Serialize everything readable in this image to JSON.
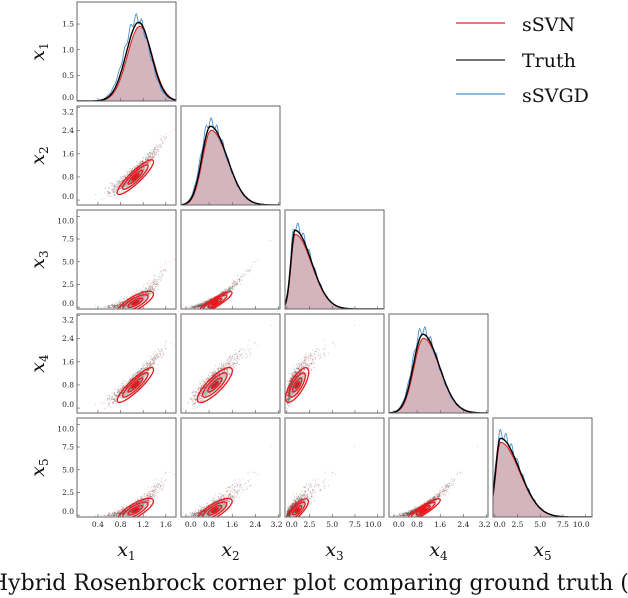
{
  "chart_data": {
    "type": "corner",
    "variables": [
      {
        "name": "x",
        "sub": "1",
        "range": [
          0.03,
          1.78
        ],
        "ticks": [
          "0.4",
          "0.8",
          "1.2",
          "1.6"
        ],
        "tick_values": [
          0.4,
          0.8,
          1.2,
          1.6
        ],
        "mode": 1.12,
        "sd": 0.22,
        "skew": 0.0,
        "density_max": 1.93,
        "density_ticks": [
          "0.0",
          "0.5",
          "1.0",
          "1.5"
        ],
        "density_tick_values": [
          0,
          0.5,
          1.0,
          1.5
        ]
      },
      {
        "name": "x",
        "sub": "2",
        "range": [
          -0.17,
          3.25
        ],
        "ticks": [
          "0.0",
          "0.8",
          "1.6",
          "2.4",
          "3.2"
        ],
        "tick_values": [
          0,
          0.8,
          1.6,
          2.4,
          3.2
        ],
        "mode": 0.85,
        "sd": 0.3,
        "skew": 0.45,
        "axis_ticks": [
          "0.0",
          "0.8",
          "1.6",
          "2.4",
          "3.2"
        ]
      },
      {
        "name": "x",
        "sub": "3",
        "range": [
          -0.2,
          10.7
        ],
        "ticks": [
          "0.0",
          "2.5",
          "5.0",
          "7.5",
          "10.0"
        ],
        "tick_values": [
          0,
          2.5,
          5,
          7.5,
          10
        ],
        "mode": 0.9,
        "sd": 0.45,
        "skew": 1.5
      },
      {
        "name": "x",
        "sub": "4",
        "range": [
          -0.17,
          3.25
        ],
        "ticks": [
          "0.0",
          "0.8",
          "1.6",
          "2.4",
          "3.2"
        ],
        "tick_values": [
          0,
          0.8,
          1.6,
          2.4,
          3.2
        ],
        "mode": 1.0,
        "sd": 0.33,
        "skew": 0.35
      },
      {
        "name": "x",
        "sub": "5",
        "range": [
          -0.2,
          10.7
        ],
        "ticks": [
          "0.0",
          "2.5",
          "5.0",
          "7.5",
          "10.0"
        ],
        "tick_values": [
          0,
          2.5,
          5,
          7.5,
          10
        ],
        "mode": 0.6,
        "sd": 0.5,
        "skew": 1.6
      }
    ],
    "legend": {
      "placement": "top-right",
      "series": [
        {
          "name": "sSVN",
          "color": "#d62728"
        },
        {
          "name": "Truth",
          "color": "#000000"
        },
        {
          "name": "sSVGD",
          "color": "#1f77b4"
        }
      ]
    },
    "fill_color": "#a05a6e",
    "contour_color": "#e8161b",
    "scatter_color": "#555555"
  },
  "caption": "Hybrid Rosenbrock corner plot comparing ground truth (b"
}
